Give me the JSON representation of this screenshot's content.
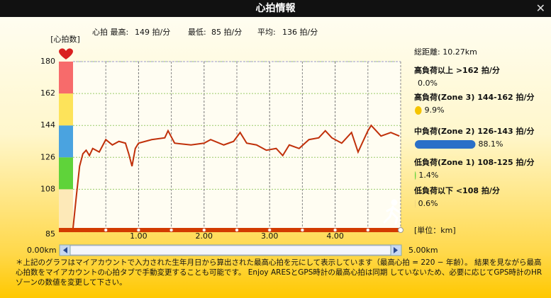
{
  "header": {
    "title": "心拍情報"
  },
  "stats": [
    "心拍 最高:",
    "149 拍/分",
    "最低:",
    "85 拍/分",
    "平均:",
    "136 拍/分"
  ],
  "chart_data": {
    "type": "line",
    "ylabel": "[心拍数]",
    "xlabel": "[単位：km]",
    "ylim": [
      85,
      180
    ],
    "yticks": [
      85,
      108,
      126,
      144,
      162,
      180
    ],
    "xlim": [
      0,
      5
    ],
    "xticks": [
      {
        "value": 1,
        "label": "1.00"
      },
      {
        "value": 2,
        "label": "2.00"
      },
      {
        "value": 3,
        "label": "3.00"
      },
      {
        "value": 4,
        "label": "4.00"
      }
    ],
    "zone_colors": [
      "#fde9b8",
      "#5fd33a",
      "#4aa3e0",
      "#fde35a",
      "#f76b6b"
    ],
    "color": "#c0300a",
    "x": [
      0.0,
      0.05,
      0.1,
      0.15,
      0.2,
      0.25,
      0.3,
      0.4,
      0.5,
      0.6,
      0.7,
      0.8,
      0.85,
      0.9,
      0.95,
      1.0,
      1.2,
      1.4,
      1.45,
      1.55,
      1.8,
      2.0,
      2.1,
      2.3,
      2.45,
      2.55,
      2.65,
      2.8,
      2.95,
      3.1,
      3.2,
      3.3,
      3.45,
      3.6,
      3.75,
      3.85,
      3.95,
      4.1,
      4.25,
      4.35,
      4.5,
      4.55,
      4.7,
      4.85,
      4.98
    ],
    "values": [
      86,
      104,
      121,
      128,
      130,
      127,
      131,
      129,
      136,
      133,
      135,
      134,
      128,
      121,
      131,
      134,
      136,
      137,
      141,
      134,
      133,
      134,
      136,
      133,
      135,
      140,
      134,
      133,
      130,
      131,
      127,
      133,
      131,
      136,
      137,
      141,
      137,
      134,
      140,
      129,
      141,
      144,
      138,
      140,
      138
    ]
  },
  "slider": {
    "start": "0.00km",
    "end": "5.00km"
  },
  "summary": {
    "distance": "総距離: 10.27km",
    "zones": [
      {
        "label": "高負荷以上 >162 拍/分",
        "percent": {
          "value": 0.0,
          "label": "0.0%"
        },
        "color": "#f76b6b"
      },
      {
        "label": "高負荷(Zone 3)  144-162 拍/分",
        "percent": {
          "value": 9.9,
          "label": "9.9%"
        },
        "color": "#f5c400"
      },
      {
        "label": "中負荷(Zone 2) 126-143 拍/分",
        "percent": {
          "value": 88.1,
          "label": "88.1%"
        },
        "color": "#2a70c8"
      },
      {
        "label": "低負荷(Zone 1) 108-125 拍/分",
        "percent": {
          "value": 1.4,
          "label": "1.4%"
        },
        "color": "#5fd33a"
      },
      {
        "label": "低負荷以下 <108 拍/分",
        "percent": {
          "value": 0.6,
          "label": "0.6%"
        },
        "color": "#e8c77a"
      }
    ]
  },
  "note": "＊上記のグラフはマイアカウントで入力された生年月日から算出された最高心拍を元にして表示しています（最高心拍 = 220 − 年齢）。 結果を見ながら最高心拍数をマイアカウントの心拍タブで手動変更することも可能です。 Enjoy ARESとGPS時計の最高心拍は同期 していないため、必要に応じてGPS時計のHRゾーンの数値を変更して下さい。"
}
